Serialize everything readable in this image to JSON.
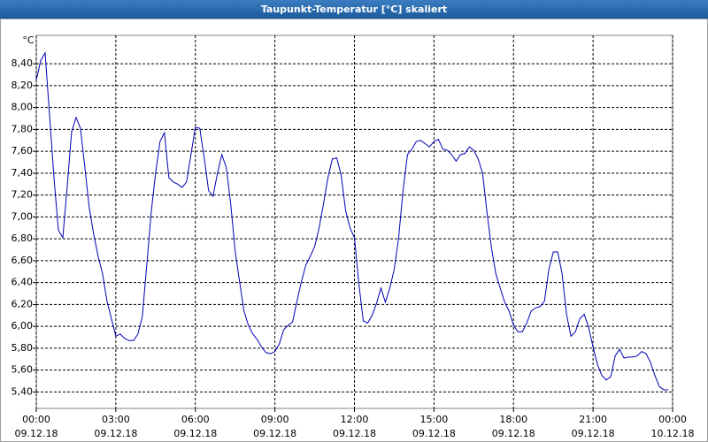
{
  "chart_data": {
    "type": "line",
    "title": "Taupunkt-Temperatur [°C] skaliert",
    "y_unit": "°C",
    "x": [
      0,
      10,
      20,
      30,
      40,
      50,
      60,
      70,
      80,
      90,
      100,
      110,
      120,
      130,
      140,
      150,
      160,
      170,
      180,
      190,
      200,
      210,
      220,
      230,
      240,
      250,
      260,
      270,
      280,
      290,
      300,
      310,
      320,
      330,
      340,
      350,
      360,
      370,
      380,
      390,
      400,
      410,
      420,
      430,
      440,
      450,
      460,
      470,
      480,
      490,
      500,
      510,
      520,
      530,
      540,
      550,
      560,
      570,
      580,
      590,
      600,
      610,
      620,
      630,
      640,
      650,
      660,
      670,
      680,
      690,
      700,
      710,
      720,
      730,
      740,
      750,
      760,
      770,
      780,
      790,
      800,
      810,
      820,
      830,
      840,
      850,
      860,
      870,
      880,
      890,
      900,
      910,
      920,
      930,
      940,
      950,
      960,
      970,
      980,
      990,
      1000,
      1010,
      1020,
      1030,
      1040,
      1050,
      1060,
      1070,
      1080,
      1090,
      1100,
      1110,
      1120,
      1130,
      1140,
      1150,
      1160,
      1170,
      1180,
      1190,
      1200,
      1210,
      1220,
      1230,
      1240,
      1250,
      1260,
      1270,
      1280,
      1290,
      1300,
      1310,
      1320,
      1330,
      1340,
      1350,
      1360,
      1370,
      1380,
      1390,
      1400,
      1410,
      1420,
      1430
    ],
    "series": [
      {
        "color": "#0000b4",
        "values": [
          8.25,
          8.43,
          8.5,
          7.93,
          7.36,
          6.88,
          6.81,
          7.28,
          7.78,
          7.91,
          7.81,
          7.45,
          7.08,
          6.84,
          6.64,
          6.48,
          6.23,
          6.07,
          5.91,
          5.93,
          5.89,
          5.87,
          5.87,
          5.93,
          6.09,
          6.56,
          7.04,
          7.4,
          7.69,
          7.77,
          7.36,
          7.32,
          7.3,
          7.27,
          7.32,
          7.57,
          7.82,
          7.81,
          7.54,
          7.24,
          7.19,
          7.4,
          7.57,
          7.45,
          7.12,
          6.69,
          6.41,
          6.14,
          6.01,
          5.93,
          5.88,
          5.81,
          5.76,
          5.75,
          5.77,
          5.84,
          5.97,
          6.01,
          6.04,
          6.23,
          6.41,
          6.56,
          6.64,
          6.73,
          6.9,
          7.12,
          7.36,
          7.53,
          7.54,
          7.38,
          7.06,
          6.9,
          6.81,
          6.39,
          6.05,
          6.03,
          6.1,
          6.21,
          6.35,
          6.22,
          6.35,
          6.52,
          6.81,
          7.24,
          7.57,
          7.62,
          7.69,
          7.7,
          7.67,
          7.64,
          7.69,
          7.71,
          7.62,
          7.61,
          7.57,
          7.51,
          7.57,
          7.58,
          7.64,
          7.61,
          7.53,
          7.4,
          7.04,
          6.72,
          6.48,
          6.35,
          6.22,
          6.14,
          6.01,
          5.95,
          5.95,
          6.03,
          6.14,
          6.17,
          6.18,
          6.23,
          6.52,
          6.68,
          6.68,
          6.48,
          6.11,
          5.91,
          5.95,
          6.07,
          6.11,
          5.99,
          5.81,
          5.65,
          5.55,
          5.51,
          5.54,
          5.73,
          5.79,
          5.71,
          5.72,
          5.72,
          5.73,
          5.77,
          5.75,
          5.67,
          5.55,
          5.45,
          5.42,
          5.42
        ]
      }
    ],
    "xlim": [
      0,
      1440
    ],
    "xticks": [
      {
        "value": 0,
        "label": "00:00",
        "date": "09.12.18"
      },
      {
        "value": 180,
        "label": "03:00",
        "date": "09.12.18"
      },
      {
        "value": 360,
        "label": "06:00",
        "date": "09.12.18"
      },
      {
        "value": 540,
        "label": "09:00",
        "date": "09.12.18"
      },
      {
        "value": 720,
        "label": "12:00",
        "date": "09.12.18"
      },
      {
        "value": 900,
        "label": "15:00",
        "date": "09.12.18"
      },
      {
        "value": 1080,
        "label": "18:00",
        "date": "09.12.18"
      },
      {
        "value": 1260,
        "label": "21:00",
        "date": "09.12.18"
      },
      {
        "value": 1440,
        "label": "00:00",
        "date": "10.12.18"
      }
    ],
    "ylim": [
      5.25,
      8.66
    ],
    "yticks": [
      {
        "value": 5.4,
        "label": "5,40"
      },
      {
        "value": 5.6,
        "label": "5,60"
      },
      {
        "value": 5.8,
        "label": "5,80"
      },
      {
        "value": 6.0,
        "label": "6,00"
      },
      {
        "value": 6.2,
        "label": "6,20"
      },
      {
        "value": 6.4,
        "label": "6,40"
      },
      {
        "value": 6.6,
        "label": "6,60"
      },
      {
        "value": 6.8,
        "label": "6,80"
      },
      {
        "value": 7.0,
        "label": "7,00"
      },
      {
        "value": 7.2,
        "label": "7,20"
      },
      {
        "value": 7.4,
        "label": "7,40"
      },
      {
        "value": 7.6,
        "label": "7,60"
      },
      {
        "value": 7.8,
        "label": "7,80"
      },
      {
        "value": 8.0,
        "label": "8,00"
      },
      {
        "value": 8.2,
        "label": "8,20"
      },
      {
        "value": 8.4,
        "label": "8,40"
      }
    ],
    "grid": true
  }
}
